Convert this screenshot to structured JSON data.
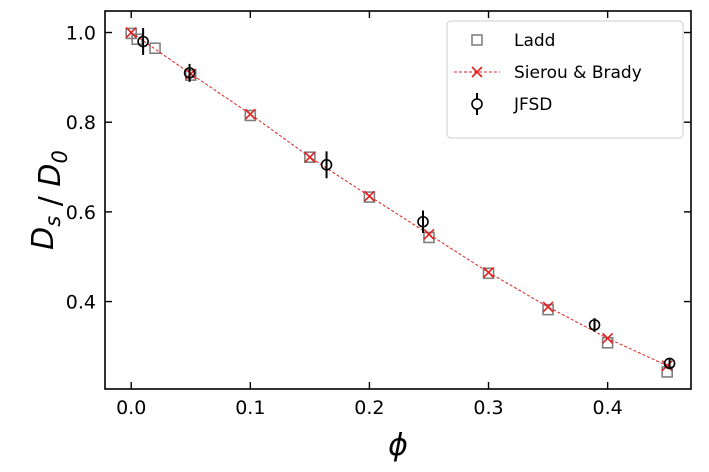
{
  "chart_data": {
    "type": "scatter",
    "xlabel": "ϕ",
    "ylabel": "D_s / D_0",
    "xlim": [
      -0.022,
      0.47
    ],
    "ylim": [
      0.205,
      1.048
    ],
    "xticks": [
      0.0,
      0.1,
      0.2,
      0.3,
      0.4
    ],
    "xtick_labels": [
      "0.0",
      "0.1",
      "0.2",
      "0.3",
      "0.4"
    ],
    "yticks": [
      0.4,
      0.6,
      0.8,
      1.0
    ],
    "ytick_labels": [
      "0.4",
      "0.6",
      "0.8",
      "1.0"
    ],
    "legend_position": "top-right",
    "series": [
      {
        "name": "Ladd",
        "marker": "square",
        "color": "#808080",
        "x": [
          0.0,
          0.005,
          0.02,
          0.05,
          0.1,
          0.15,
          0.2,
          0.25,
          0.3,
          0.35,
          0.4,
          0.45
        ],
        "y": [
          0.998,
          0.985,
          0.965,
          0.905,
          0.815,
          0.722,
          0.633,
          0.543,
          0.463,
          0.382,
          0.308,
          0.243
        ]
      },
      {
        "name": "Sierou & Brady",
        "marker": "x",
        "line": "dashed",
        "color": "#e02020",
        "x": [
          0.0,
          0.05,
          0.1,
          0.15,
          0.2,
          0.25,
          0.3,
          0.35,
          0.4,
          0.45
        ],
        "y": [
          1.0,
          0.908,
          0.818,
          0.722,
          0.635,
          0.55,
          0.465,
          0.388,
          0.318,
          0.257
        ]
      },
      {
        "name": "JFSD",
        "marker": "circle-errorbar",
        "color": "#000000",
        "x": [
          0.01,
          0.049,
          0.164,
          0.245,
          0.389,
          0.452
        ],
        "y": [
          0.98,
          0.91,
          0.705,
          0.578,
          0.348,
          0.262
        ],
        "yerr": [
          0.03,
          0.02,
          0.03,
          0.025,
          0.015,
          0.01
        ]
      }
    ]
  }
}
